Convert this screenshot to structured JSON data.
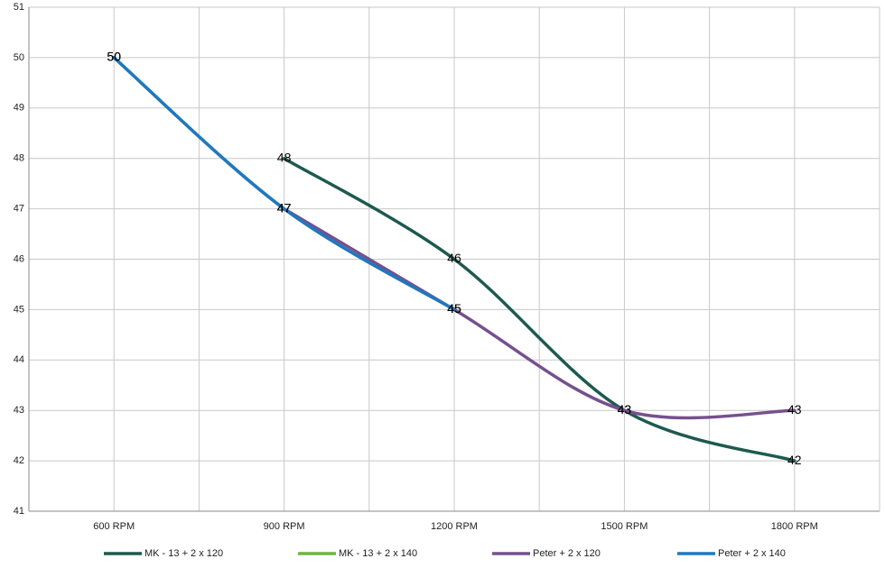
{
  "chart_data": {
    "type": "line",
    "categories": [
      "600 RPM",
      "900 RPM",
      "1200 RPM",
      "1500 RPM",
      "1800 RPM"
    ],
    "series": [
      {
        "name": "MK - 13 + 2 x 120",
        "color": "#1d5a4f",
        "values": [
          null,
          48,
          46,
          43,
          42
        ]
      },
      {
        "name": "MK - 13 + 2 x 140",
        "color": "#6fb43f",
        "values": [
          50,
          47,
          45,
          null,
          null
        ]
      },
      {
        "name": "Peter + 2 x 120",
        "color": "#76508e",
        "values": [
          null,
          47,
          45,
          43,
          43
        ]
      },
      {
        "name": "Peter + 2 x 140",
        "color": "#1f78c1",
        "values": [
          50,
          47,
          45,
          null,
          null
        ]
      }
    ],
    "ylim": [
      41,
      51
    ],
    "yticks": [
      41,
      42,
      43,
      44,
      45,
      46,
      47,
      48,
      49,
      50,
      51
    ],
    "grid": true,
    "smooth": true,
    "legend": "bottom"
  }
}
